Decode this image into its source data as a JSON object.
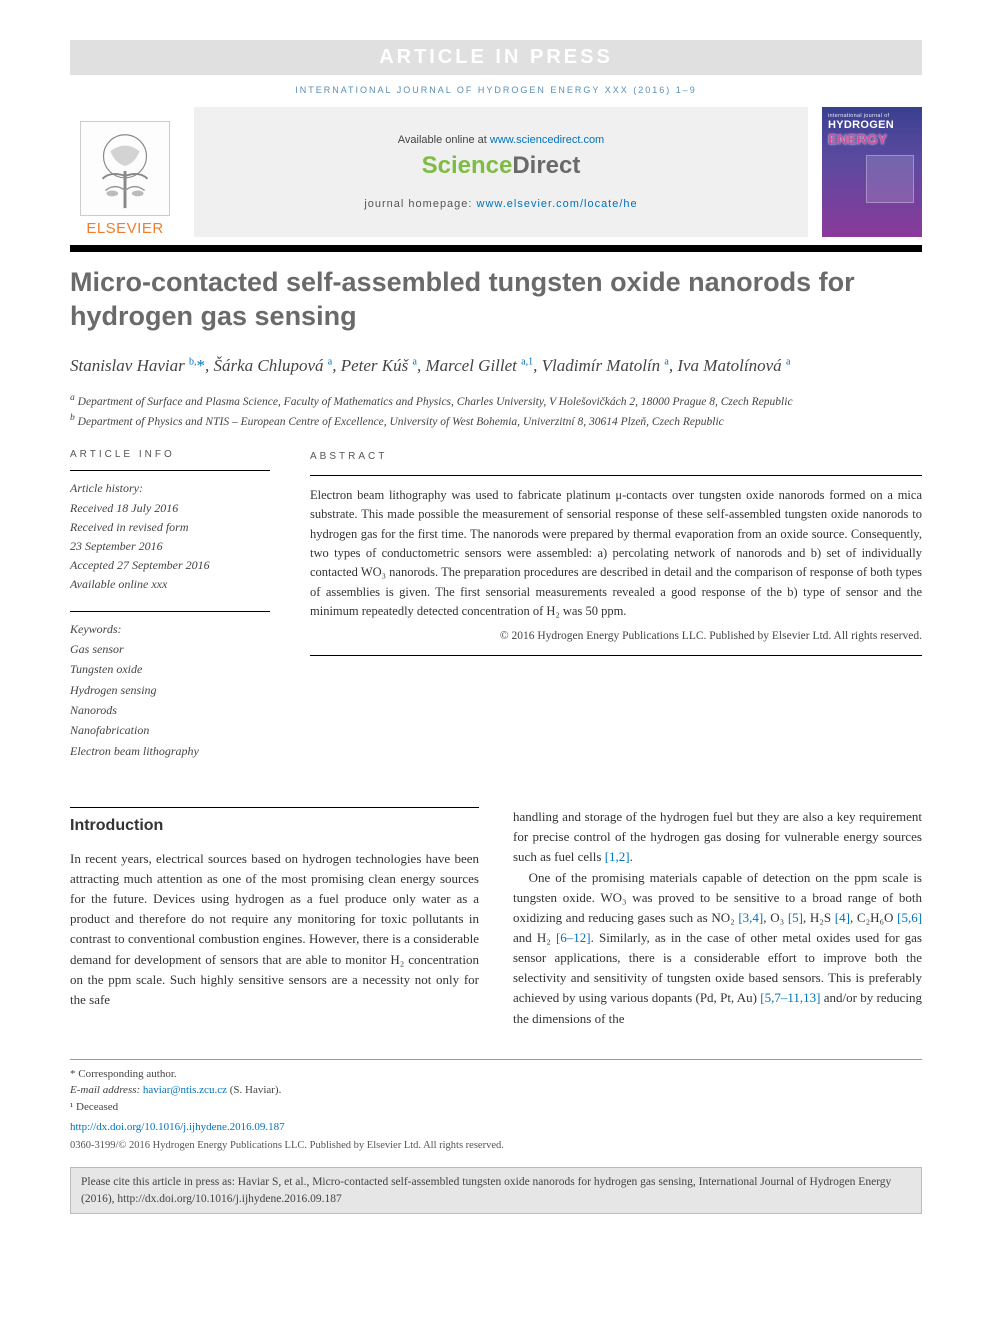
{
  "banner": {
    "text": "ARTICLE IN PRESS"
  },
  "journal_ref": "INTERNATIONAL JOURNAL OF HYDROGEN ENERGY XXX (2016) 1–9",
  "header": {
    "elsevier_label": "ELSEVIER",
    "available_prefix": "Available online at ",
    "available_link": "www.sciencedirect.com",
    "sd_logo_sci": "Science",
    "sd_logo_dir": "Direct",
    "homepage_prefix": "journal homepage: ",
    "homepage_link": "www.elsevier.com/locate/he",
    "cover": {
      "line1": "international journal of",
      "line2": "HYDROGEN",
      "line3": "ENERGY"
    }
  },
  "title": "Micro-contacted self-assembled tungsten oxide nanorods for hydrogen gas sensing",
  "authors_html": "Stanislav Haviar <sup>b,</sup><span class='star'>*</span>, Šárka Chlupová <sup>a</sup>, Peter Kúš <sup>a</sup>, Marcel Gillet <sup>a,1</sup>, Vladimír Matolín <sup>a</sup>, Iva Matolínová <sup>a</sup>",
  "affiliations": {
    "a": "Department of Surface and Plasma Science, Faculty of Mathematics and Physics, Charles University, V Holešovičkách 2, 18000 Prague 8, Czech Republic",
    "b": "Department of Physics and NTIS – European Centre of Excellence, University of West Bohemia, Univerzitní 8, 30614 Plzeň, Czech Republic"
  },
  "article_info": {
    "label": "ARTICLE INFO",
    "history_hdr": "Article history:",
    "received": "Received 18 July 2016",
    "revised1": "Received in revised form",
    "revised2": "23 September 2016",
    "accepted": "Accepted 27 September 2016",
    "online": "Available online xxx",
    "kw_hdr": "Keywords:",
    "keywords": [
      "Gas sensor",
      "Tungsten oxide",
      "Hydrogen sensing",
      "Nanorods",
      "Nanofabrication",
      "Electron beam lithography"
    ]
  },
  "abstract": {
    "label": "ABSTRACT",
    "text": "Electron beam lithography was used to fabricate platinum μ-contacts over tungsten oxide nanorods formed on a mica substrate. This made possible the measurement of sensorial response of these self-assembled tungsten oxide nanorods to hydrogen gas for the first time. The nanorods were prepared by thermal evaporation from an oxide source. Consequently, two types of conductometric sensors were assembled: a) percolating network of nanorods and b) set of individually contacted WO₃ nanorods. The preparation procedures are described in detail and the comparison of response of both types of assemblies is given. The first sensorial measurements revealed a good response of the b) type of sensor and the minimum repeatedly detected concentration of H₂ was 50 ppm.",
    "copyright": "© 2016 Hydrogen Energy Publications LLC. Published by Elsevier Ltd. All rights reserved."
  },
  "intro": {
    "heading": "Introduction",
    "p1": "In recent years, electrical sources based on hydrogen technologies have been attracting much attention as one of the most promising clean energy sources for the future. Devices using hydrogen as a fuel produce only water as a product and therefore do not require any monitoring for toxic pollutants in contrast to conventional combustion engines. However, there is a considerable demand for development of sensors that are able to monitor H₂ concentration on the ppm scale. Such highly sensitive sensors are a necessity not only for the safe",
    "p2a": "handling and storage of the hydrogen fuel but they are also a key requirement for precise control of the hydrogen gas dosing for vulnerable energy sources such as fuel cells ",
    "p2_ref": "[1,2]",
    "p2b": ".",
    "p3a": "One of the promising materials capable of detection on the ppm scale is tungsten oxide. WO₃ was proved to be sensitive to a broad range of both oxidizing and reducing gases such as NO₂ ",
    "p3_r1": "[3,4]",
    "p3b": ", O₃ ",
    "p3_r2": "[5]",
    "p3c": ", H₂S ",
    "p3_r3": "[4]",
    "p3d": ", C₂H₆O ",
    "p3_r4": "[5,6]",
    "p3e": " and H₂ ",
    "p3_r5": "[6–12]",
    "p3f": ". Similarly, as in the case of other metal oxides used for gas sensor applications, there is a considerable effort to improve both the selectivity and sensitivity of tungsten oxide based sensors. This is preferably achieved by using various dopants (Pd, Pt, Au) ",
    "p3_r6": "[5,7–11,13]",
    "p3g": " and/or by reducing the dimensions of the"
  },
  "footnotes": {
    "corr": "* Corresponding author.",
    "email_label": "E-mail address: ",
    "email": "haviar@ntis.zcu.cz",
    "email_who": " (S. Haviar).",
    "deceased": "¹ Deceased",
    "doi": "http://dx.doi.org/10.1016/j.ijhydene.2016.09.187",
    "copyright": "0360-3199/© 2016 Hydrogen Energy Publications LLC. Published by Elsevier Ltd. All rights reserved."
  },
  "cite_box": "Please cite this article in press as: Haviar S, et al., Micro-contacted self-assembled tungsten oxide nanorods for hydrogen gas sensing, International Journal of Hydrogen Energy (2016), http://dx.doi.org/10.1016/j.ijhydene.2016.09.187",
  "colors": {
    "link": "#0072bc",
    "elsevier_orange": "#ee7d2e",
    "sd_green": "#7fbc42",
    "title_grey": "#6a6a6a",
    "banner_bg": "#e0e0e0"
  }
}
